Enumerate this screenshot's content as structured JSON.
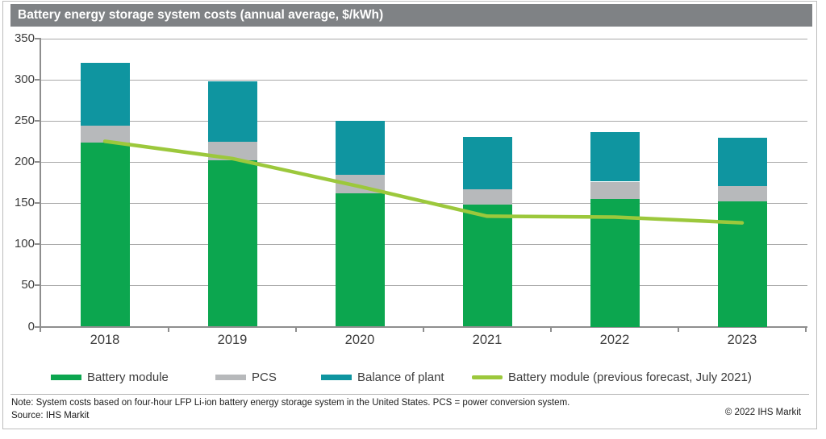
{
  "header": {
    "title": "Battery energy storage system costs (annual average, $/kWh)"
  },
  "chart_data": {
    "type": "bar",
    "stacked": true,
    "title": "Battery energy storage system costs (annual average, $/kWh)",
    "categories": [
      "2018",
      "2019",
      "2020",
      "2021",
      "2022",
      "2023"
    ],
    "series": [
      {
        "name": "Battery module",
        "color": "#0ca64f",
        "values": [
          223,
          202,
          162,
          148,
          155,
          152
        ]
      },
      {
        "name": "PCS",
        "color": "#b7b9bb",
        "values": [
          21,
          22,
          22,
          19,
          21,
          19
        ]
      },
      {
        "name": "Balance of plant",
        "color": "#0f95a0",
        "values": [
          76,
          74,
          66,
          63,
          60,
          58
        ]
      }
    ],
    "line_series": [
      {
        "name": "Battery module (previous forecast, July 2021)",
        "color": "#9cc83c",
        "values": [
          225,
          204,
          170,
          134,
          133,
          126
        ]
      }
    ],
    "stack_totals": [
      320,
      298,
      250,
      230,
      236,
      229
    ],
    "xlabel": "",
    "ylabel": "",
    "ylim": [
      0,
      350
    ],
    "ytick_step": 50,
    "grid": "horizontal",
    "legend_position": "bottom"
  },
  "legend": {
    "items": [
      {
        "label": "Battery module",
        "color": "#0ca64f",
        "type": "bar"
      },
      {
        "label": "PCS",
        "color": "#b7b9bb",
        "type": "bar"
      },
      {
        "label": "Balance of plant",
        "color": "#0f95a0",
        "type": "bar"
      },
      {
        "label": "Battery module (previous forecast, July 2021)",
        "color": "#9cc83c",
        "type": "line"
      }
    ]
  },
  "footer": {
    "note": "Note: System costs based on four-hour LFP Li-ion battery energy storage system in the United States. PCS = power conversion system.",
    "source": "Source: IHS Markit",
    "copyright": "© 2022 IHS Markit"
  },
  "colors": {
    "title_bar_bg": "#7f8285",
    "title_text": "#ffffff",
    "gridline": "#a9a9a9",
    "axis": "#8e8e8e",
    "tick_label": "#3d3d3d",
    "frame_border": "#bdbdbd"
  }
}
